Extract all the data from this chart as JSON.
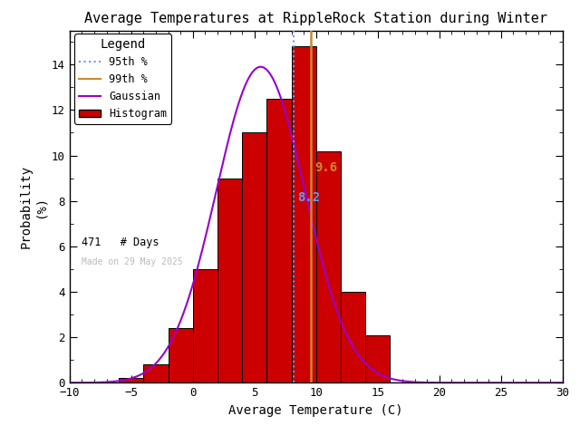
{
  "title": "Average Temperatures at RippleRock Station during Winter",
  "xlabel": "Average Temperature (C)",
  "ylabel1": "Probability",
  "ylabel2": "(%)",
  "xlim": [
    -10,
    30
  ],
  "ylim": [
    0,
    15.5
  ],
  "bin_edges": [
    -8,
    -6,
    -4,
    -2,
    0,
    2,
    4,
    6,
    8,
    10,
    12,
    14,
    16
  ],
  "bar_heights": [
    0.0,
    0.2,
    0.8,
    2.4,
    5.0,
    9.0,
    11.0,
    12.5,
    14.8,
    10.2,
    4.0,
    2.1
  ],
  "bar_color": "#cc0000",
  "bar_edgecolor": "#000000",
  "gaussian_color": "#9900cc",
  "gaussian_mean": 5.5,
  "gaussian_std": 3.6,
  "gaussian_amplitude": 13.9,
  "pct95_value": 8.2,
  "pct95_color": "#6699ff",
  "pct95_linestyle": "dotted",
  "pct99_value": 9.6,
  "pct99_color": "#cc8833",
  "pct99_linestyle": "solid",
  "n_days": 471,
  "watermark": "Made on 29 May 2025",
  "watermark_color": "#bbbbbb",
  "bg_color": "#ffffff",
  "legend_title": "Legend",
  "xticks": [
    -10,
    -5,
    0,
    5,
    10,
    15,
    20,
    25,
    30
  ],
  "yticks": [
    0,
    2,
    4,
    6,
    8,
    10,
    12,
    14
  ],
  "figsize": [
    6.4,
    4.8
  ],
  "dpi": 100
}
